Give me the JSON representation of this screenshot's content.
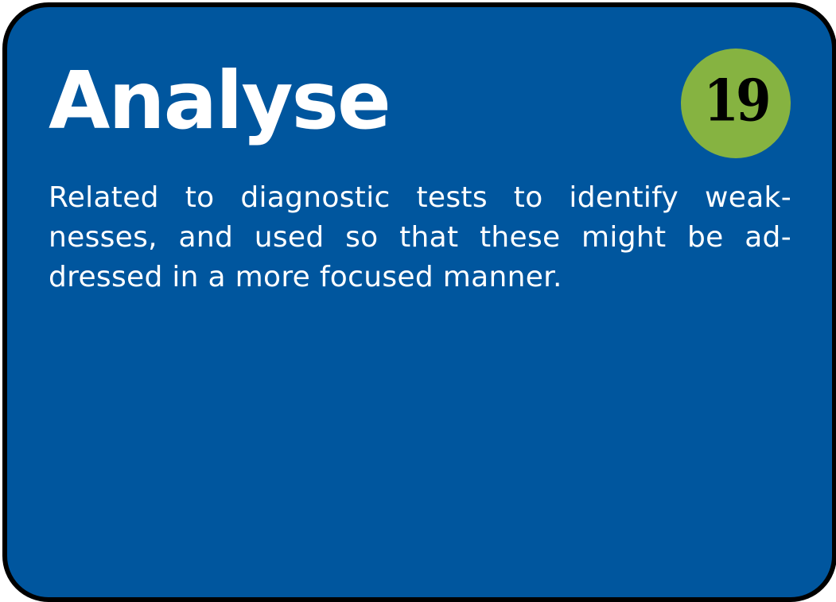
{
  "card": {
    "title": "Analyse",
    "number": "19",
    "description_lines": [
      "Related to diagnostic tests to identify weak-",
      "nesses, and used so that these might be ad-",
      "dressed in a more focused manner."
    ]
  },
  "colors": {
    "card_background": "#00569e",
    "card_border": "#000000",
    "badge_background": "#86b341",
    "badge_text": "#000000",
    "text": "#ffffff"
  }
}
